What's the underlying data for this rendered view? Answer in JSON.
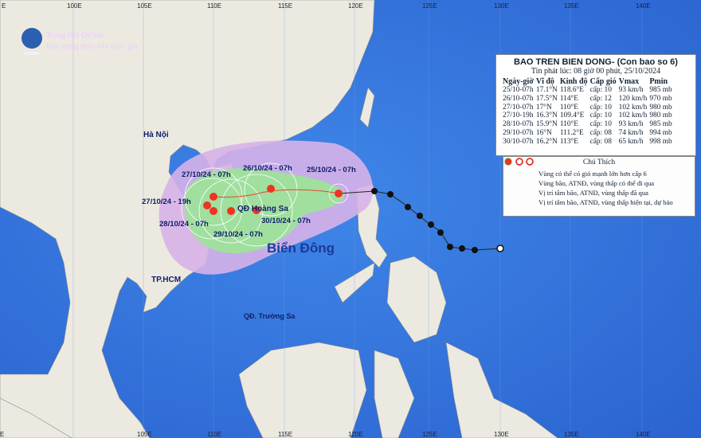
{
  "org": {
    "logo": "NCHMF",
    "line1": "Trung tâm Dự báo",
    "line2": "Khí tượng thủy văn quốc gia"
  },
  "grid_labels": {
    "top": [
      "E",
      "100E",
      "105E",
      "110E",
      "115E",
      "120E",
      "125E",
      "130E",
      "135E",
      "140E"
    ],
    "bottom": [
      "E",
      "105E",
      "110E",
      "115E",
      "120E",
      "125E",
      "130E",
      "135E",
      "140E"
    ]
  },
  "places": [
    "Hà Nội",
    "QĐ Hoàng Sa",
    "TP.HCM",
    "QĐ. Trường Sa",
    "Biển Đông"
  ],
  "forecast_labels": [
    "25/10/24 - 07h",
    "26/10/24 - 07h",
    "27/10/24 - 07h",
    "27/10/24 - 19h",
    "28/10/24 - 07h",
    "29/10/24 - 07h",
    "30/10/24 - 07h"
  ],
  "info": {
    "title": "BAO TREN BIEN DONG- (Con bao so 6)",
    "subtitle": "Tin phát lúc: 08 giờ 00 phút, 25/10/2024",
    "headers": [
      "Ngày-giờ",
      "Vĩ độ",
      "Kinh độ",
      "Cấp gió",
      "Vmax",
      "Pmin"
    ],
    "rows": [
      [
        "25/10-07h",
        "17.1°N",
        "118.6°E",
        "cấp: 10",
        "93 km/h",
        "985 mb"
      ],
      [
        "26/10-07h",
        "17.5°N",
        "114°E",
        "cấp: 12",
        "120 km/h",
        "970 mb"
      ],
      [
        "27/10-07h",
        "17°N",
        "110°E",
        "cấp: 10",
        "102 km/h",
        "980 mb"
      ],
      [
        "27/10-19h",
        "16.3°N",
        "109.4°E",
        "cấp: 10",
        "102 km/h",
        "980 mb"
      ],
      [
        "28/10-07h",
        "15.9°N",
        "110°E",
        "cấp: 10",
        "93 km/h",
        "985 mb"
      ],
      [
        "29/10-07h",
        "16°N",
        "111.2°E",
        "cấp: 08",
        "74 km/h",
        "994 mb"
      ],
      [
        "30/10-07h",
        "16.2°N",
        "113°E",
        "cấp: 08",
        "65 km/h",
        "998 mb"
      ]
    ]
  },
  "legend": {
    "title": "Chú Thích",
    "items": [
      "Vùng có thể có gió mạnh lớn hơn cấp 6",
      "Vùng bão, ATNĐ, vùng thấp có thể đi qua",
      "Vị trí tâm bão, ATNĐ, vùng thấp đã qua",
      "Vị trí tâm bão, ATNĐ, vùng thấp hiện tại, dự báo"
    ]
  }
}
